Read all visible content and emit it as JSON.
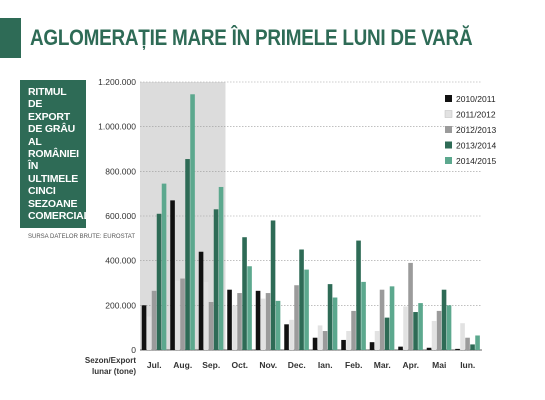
{
  "headline": "AGLOMERAȚIE MARE ÎN PRIMELE LUNI DE VARĂ",
  "sidebar": {
    "title": "RITMUL DE EXPORT DE GRÂU AL ROMÂNIEI ÎN ULTIMELE CINCI SEZOANE COMERCIALE",
    "source": "SURSA DATELOR BRUTE: EUROSTAT"
  },
  "chart_data": {
    "type": "bar",
    "categories": [
      "Jul.",
      "Aug.",
      "Sep.",
      "Oct.",
      "Nov.",
      "Dec.",
      "Ian.",
      "Feb.",
      "Mar.",
      "Apr.",
      "Mai",
      "Iun."
    ],
    "xlabel": "Sezon/Export lunar (tone)",
    "ylim": [
      0,
      1200000
    ],
    "yticks": [
      0,
      200000,
      400000,
      600000,
      800000,
      1000000,
      1200000
    ],
    "ytick_labels": [
      "0",
      "200.000",
      "400.000",
      "600.000",
      "800.000",
      "1.000.000",
      "1.200.000"
    ],
    "highlight_categories": [
      "Jul.",
      "Aug.",
      "Sep."
    ],
    "grid": "horizontal",
    "legend_position": "top-right",
    "series": [
      {
        "name": "2010/2011",
        "color": "#111111",
        "values": [
          200000,
          670000,
          440000,
          270000,
          265000,
          115000,
          55000,
          45000,
          35000,
          15000,
          10000,
          5000
        ]
      },
      {
        "name": "2011/2012",
        "color": "#e2e2e2",
        "values": [
          150000,
          310000,
          305000,
          200000,
          230000,
          135000,
          110000,
          85000,
          85000,
          195000,
          130000,
          120000
        ]
      },
      {
        "name": "2012/2013",
        "color": "#9b9b9b",
        "values": [
          265000,
          320000,
          215000,
          255000,
          255000,
          290000,
          85000,
          175000,
          270000,
          390000,
          175000,
          55000
        ]
      },
      {
        "name": "2013/2014",
        "color": "#2e6b56",
        "values": [
          610000,
          855000,
          630000,
          505000,
          580000,
          450000,
          295000,
          490000,
          145000,
          170000,
          270000,
          25000
        ]
      },
      {
        "name": "2014/2015",
        "color": "#5ca88e",
        "values": [
          745000,
          1145000,
          730000,
          375000,
          220000,
          360000,
          235000,
          305000,
          285000,
          210000,
          200000,
          65000
        ]
      }
    ]
  }
}
